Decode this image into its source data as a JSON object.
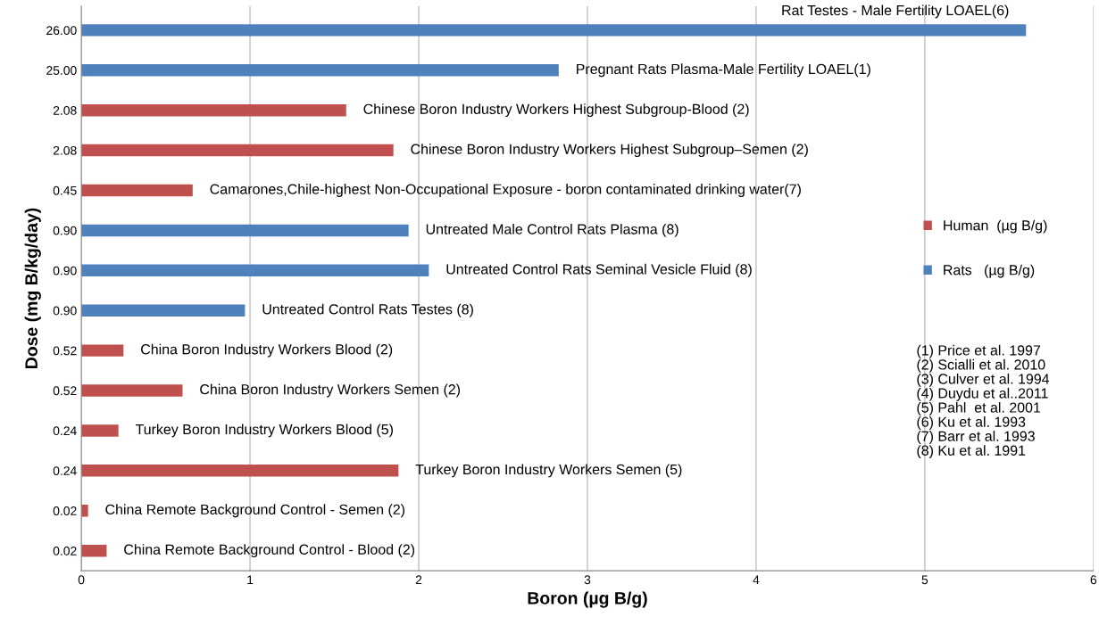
{
  "chart_data": {
    "type": "bar",
    "orientation": "horizontal",
    "xlabel": "Boron (µg B/g)",
    "ylabel": "Dose (mg B/kg/day)",
    "categories": [
      "26.00",
      "25.00",
      "2.08",
      "2.08",
      "0.45",
      "0.90",
      "0.90",
      "0.90",
      "0.52",
      "0.52",
      "0.24",
      "0.24",
      "0.02",
      "0.02"
    ],
    "series": [
      {
        "name": "Human  (µg B/g)",
        "color": "#c0504d",
        "values": [
          null,
          null,
          1.57,
          1.85,
          0.66,
          null,
          null,
          null,
          0.25,
          0.6,
          0.22,
          1.88,
          0.04,
          0.15
        ]
      },
      {
        "name": "Rats   (µg B/g)",
        "color": "#4f81bd",
        "values": [
          5.6,
          2.83,
          null,
          null,
          null,
          1.94,
          2.06,
          0.97,
          null,
          null,
          null,
          null,
          null,
          null
        ]
      }
    ],
    "xlim": [
      0,
      6
    ],
    "xticks": [
      0,
      1,
      2,
      3,
      4,
      5,
      6
    ],
    "grid": "x",
    "legend": "right",
    "annotations": [
      {
        "text": "Rat Testes - Male Fertility LOAEL(6)",
        "x": 5.6,
        "y": "26.00"
      },
      {
        "text": "Pregnant Rats Plasma-Male Fertility LOAEL(1)",
        "x": 2.83,
        "y": "25.00"
      },
      {
        "text": "Chinese Boron Industry Workers Highest Subgroup-Blood (2)",
        "x": 1.57,
        "y": "2.08"
      },
      "Chinese Boron Industry Workers Highest Subgroup–Semen (2)",
      {
        "text": "Camarones,Chile-highest Non-Occupational Exposure - boron contaminated drinking water(7)",
        "x": 0.66,
        "y": "0.45"
      },
      {
        "text": "Untreated Male Control Rats Plasma (8)",
        "x": 1.94,
        "y": "0.90"
      },
      "Untreated Control Rats Seminal Vesicle Fluid (8)",
      "Untreated Control Rats Testes (8)",
      {
        "text": "China Boron Industry Workers Blood (2)",
        "x": 0.25,
        "y": "0.52"
      },
      "China Boron Industry Workers Semen (2)",
      {
        "text": "Turkey Boron Industry Workers Blood (5)",
        "x": 0.22,
        "y": "0.24"
      },
      "Turkey Boron Industry Workers Semen (5)",
      {
        "text": "China Remote Background Control - Semen (2)",
        "x": 0.04,
        "y": "0.02"
      },
      "China Remote Background Control - Blood (2)",
      "(1) Price et al. 1997",
      "(2) Scialli et al. 2010",
      "(3) Culver et al. 1994",
      "(4) Duydu et al..2011",
      "(5) Pahl  et al. 2001",
      "(6) Ku et al. 1993",
      "(7) Barr et al. 1993",
      "(8) Ku et al. 1991"
    ]
  }
}
